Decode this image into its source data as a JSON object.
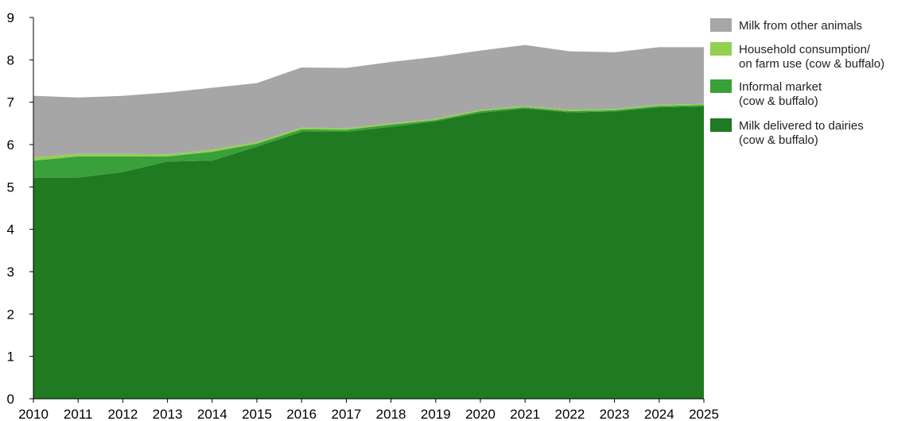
{
  "chart_data": {
    "type": "area",
    "stacked": true,
    "title": "",
    "xlabel": "",
    "ylabel": "",
    "x": [
      "2010",
      "2011",
      "2012",
      "2013",
      "2014",
      "2015",
      "2016",
      "2017",
      "2018",
      "2019",
      "2020",
      "2021",
      "2022",
      "2023",
      "2024",
      "2025"
    ],
    "ylim": [
      0,
      9
    ],
    "yticks": [
      "0",
      "1",
      "2",
      "3",
      "4",
      "5",
      "6",
      "7",
      "8",
      "9"
    ],
    "grid": false,
    "legend_position": "right",
    "series": [
      {
        "name": "Milk delivered to dairies\n(cow & buffalo)",
        "legend_lines": [
          "Milk delivered to dairies",
          "(cow & buffalo)"
        ],
        "color": "#1f7a21",
        "values": [
          5.22,
          5.22,
          5.35,
          5.6,
          5.62,
          5.95,
          6.3,
          6.3,
          6.42,
          6.55,
          6.75,
          6.85,
          6.76,
          6.78,
          6.88,
          6.9
        ]
      },
      {
        "name": "Informal market\n(cow & buffalo)",
        "legend_lines": [
          "Informal market",
          "(cow & buffalo)"
        ],
        "color": "#3aa03a",
        "values": [
          0.4,
          0.5,
          0.37,
          0.12,
          0.21,
          0.07,
          0.06,
          0.05,
          0.05,
          0.03,
          0.04,
          0.03,
          0.03,
          0.03,
          0.03,
          0.03
        ]
      },
      {
        "name": "Household consumption/\non farm use (cow & buffalo)",
        "legend_lines": [
          "Household consumption/",
          "on farm use (cow & buffalo)"
        ],
        "color": "#92d050",
        "values": [
          0.08,
          0.06,
          0.06,
          0.05,
          0.05,
          0.04,
          0.04,
          0.04,
          0.03,
          0.03,
          0.03,
          0.03,
          0.03,
          0.03,
          0.03,
          0.03
        ]
      },
      {
        "name": "Milk from other animals",
        "legend_lines": [
          "Milk from other animals"
        ],
        "color": "#a6a6a6",
        "values": [
          1.45,
          1.33,
          1.37,
          1.46,
          1.46,
          1.39,
          1.42,
          1.42,
          1.45,
          1.46,
          1.4,
          1.44,
          1.38,
          1.34,
          1.36,
          1.34
        ]
      }
    ]
  }
}
